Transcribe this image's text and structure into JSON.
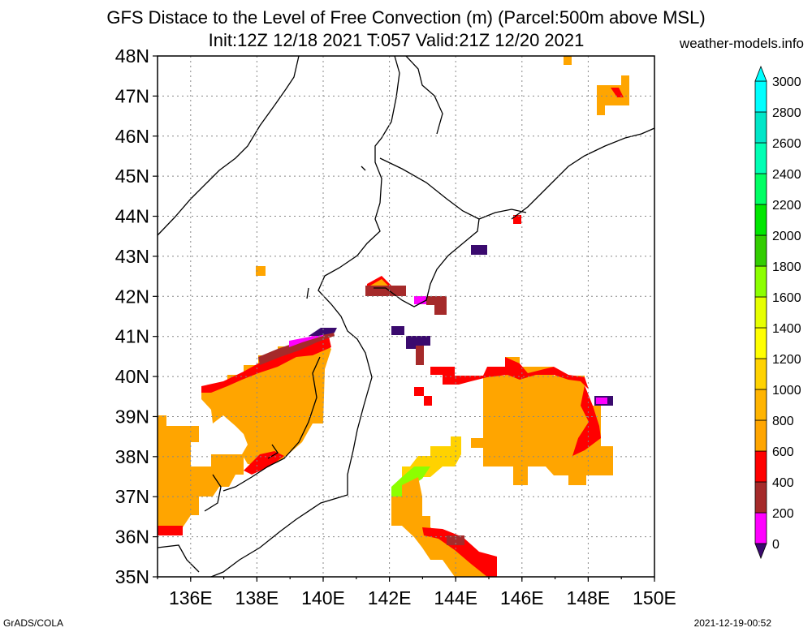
{
  "title_line1": "GFS Distace to the Level of Free Convection (m) (Parcel:500m above MSL)",
  "title_line2": "Init:12Z 12/18 2021 T:057 Valid:21Z 12/20 2021",
  "site": "weather-models.info",
  "footer_left": "GrADS/COLA",
  "footer_right": "2021-12-19-00:52",
  "map": {
    "lat_labels": [
      "48N",
      "47N",
      "46N",
      "45N",
      "44N",
      "43N",
      "42N",
      "41N",
      "40N",
      "39N",
      "38N",
      "37N",
      "36N",
      "35N"
    ],
    "lon_labels": [
      "136E",
      "138E",
      "140E",
      "142E",
      "144E",
      "146E",
      "148E",
      "150E"
    ],
    "lat_range": [
      35,
      48
    ],
    "lon_range": [
      135,
      150
    ],
    "grid": "dotted"
  },
  "colorbar": {
    "levels": [
      "0",
      "200",
      "400",
      "600",
      "800",
      "1000",
      "1200",
      "1400",
      "1600",
      "1800",
      "2000",
      "2200",
      "2400",
      "2600",
      "2800",
      "3000"
    ],
    "colors": [
      "#3a0a6e",
      "#ff00ff",
      "#a52a2a",
      "#ff0000",
      "#ffa500",
      "#ffb400",
      "#ffd200",
      "#ffff00",
      "#e6ff00",
      "#8cff00",
      "#32cd00",
      "#00e600",
      "#00ff64",
      "#00ffb4",
      "#00e6c8",
      "#00ffff"
    ]
  }
}
